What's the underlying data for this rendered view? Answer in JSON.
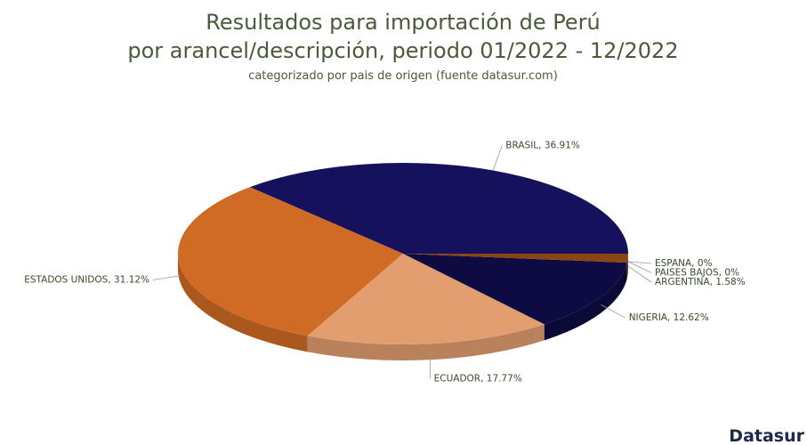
{
  "chart_data": {
    "type": "pie",
    "title": [
      "Resultados para importación de Perú",
      "por arancel/descripción, periodo 01/2022 - 12/2022"
    ],
    "subtitle": "categorizado por pais de origen (fuente datasur.com)",
    "values": [
      36.91,
      31.12,
      17.77,
      12.62,
      1.58,
      0,
      0
    ],
    "value_labels": [
      "BRASIL, 36.91%",
      "ESTADOS UNIDOS, 31.12%",
      "ECUADOR, 17.77%",
      "NIGERIA, 12.62%",
      "ARGENTINA, 1.58%",
      "PAISES BAJOS, 0%",
      "ESPANA, 0%"
    ],
    "colors": [
      "#15115c",
      "#d06b26",
      "#e39e70",
      "#0d0b42",
      "#8b4513",
      "#8b4513",
      "#8b4513"
    ],
    "logo": "Datasur"
  }
}
